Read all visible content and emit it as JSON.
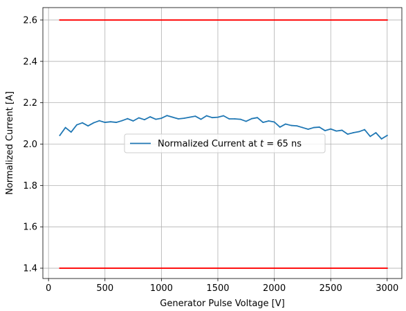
{
  "chart_data": {
    "type": "line",
    "title": "",
    "xlabel": "Generator Pulse Voltage [V]",
    "ylabel": "Normalized Current [A]",
    "xlim": [
      -50,
      3130
    ],
    "ylim": [
      1.35,
      2.66
    ],
    "xticks": [
      0,
      500,
      1000,
      1500,
      2000,
      2500,
      3000
    ],
    "yticks": [
      1.4,
      1.6,
      1.8,
      2.0,
      2.2,
      2.4,
      2.6
    ],
    "xtick_labels": [
      "0",
      "500",
      "1000",
      "1500",
      "2000",
      "2500",
      "3000"
    ],
    "ytick_labels": [
      "1.4",
      "1.6",
      "1.8",
      "2.0",
      "2.2",
      "2.4",
      "2.6"
    ],
    "grid": true,
    "legend": {
      "position": "center",
      "text_prefix": "Normalized Current at ",
      "text_var": "t",
      "text_suffix": " = 65 ns"
    },
    "series": [
      {
        "name": "Normalized Current at t = 65 ns",
        "color": "#1f77b4",
        "x": [
          100,
          150,
          200,
          250,
          300,
          350,
          400,
          450,
          500,
          550,
          600,
          650,
          700,
          750,
          800,
          850,
          900,
          950,
          1000,
          1050,
          1100,
          1150,
          1200,
          1250,
          1300,
          1350,
          1400,
          1450,
          1500,
          1550,
          1600,
          1650,
          1700,
          1750,
          1800,
          1850,
          1900,
          1950,
          2000,
          2050,
          2100,
          2150,
          2200,
          2250,
          2300,
          2350,
          2400,
          2450,
          2500,
          2550,
          2600,
          2650,
          2700,
          2750,
          2800,
          2850,
          2900,
          2950,
          3000
        ],
        "y": [
          2.042,
          2.08,
          2.058,
          2.093,
          2.103,
          2.088,
          2.103,
          2.113,
          2.105,
          2.108,
          2.105,
          2.113,
          2.123,
          2.112,
          2.127,
          2.118,
          2.132,
          2.12,
          2.125,
          2.138,
          2.13,
          2.122,
          2.125,
          2.13,
          2.135,
          2.12,
          2.137,
          2.128,
          2.13,
          2.137,
          2.122,
          2.122,
          2.12,
          2.11,
          2.123,
          2.128,
          2.105,
          2.112,
          2.107,
          2.082,
          2.097,
          2.09,
          2.088,
          2.08,
          2.072,
          2.08,
          2.082,
          2.065,
          2.073,
          2.063,
          2.067,
          2.048,
          2.055,
          2.06,
          2.07,
          2.037,
          2.055,
          2.025,
          2.042
        ]
      },
      {
        "name": "",
        "color": "#ff0000",
        "x": [
          100,
          3000
        ],
        "y": [
          2.6,
          2.6
        ]
      },
      {
        "name": "",
        "color": "#ff0000",
        "x": [
          100,
          3000
        ],
        "y": [
          1.4,
          1.4
        ]
      }
    ]
  }
}
